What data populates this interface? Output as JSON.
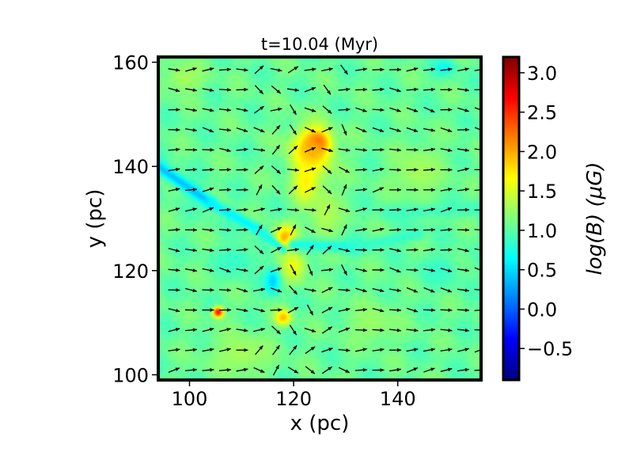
{
  "chart_data": {
    "type": "heatmap",
    "title": "t=10.04 (Myr)",
    "xlabel": "x (pc)",
    "ylabel": "y (pc)",
    "xlim": [
      94,
      156
    ],
    "ylim": [
      99,
      161
    ],
    "xticks": [
      100,
      120,
      140
    ],
    "yticks": [
      100,
      120,
      140,
      160
    ],
    "colorbar": {
      "label": "log(B) (μG)",
      "colormap": "jet",
      "range": [
        -0.9,
        3.2
      ],
      "ticks": [
        -0.5,
        0.0,
        0.5,
        1.0,
        1.5,
        2.0,
        2.5,
        3.0
      ],
      "tick_labels": [
        "−0.5",
        "0.0",
        "0.5",
        "1.0",
        "1.5",
        "2.0",
        "2.5",
        "3.0"
      ]
    },
    "background_level": 1.05,
    "features": [
      {
        "kind": "blob",
        "x": 124.5,
        "y": 144.5,
        "rx": 2.0,
        "ry": 2.0,
        "value": 2.9
      },
      {
        "kind": "blob",
        "x": 123.5,
        "y": 143.0,
        "rx": 4.0,
        "ry": 4.5,
        "value": 2.0
      },
      {
        "kind": "blob",
        "x": 122.5,
        "y": 137.0,
        "rx": 2.5,
        "ry": 4.0,
        "value": 1.75
      },
      {
        "kind": "blob",
        "x": 118.5,
        "y": 126.0,
        "rx": 2.0,
        "ry": 2.5,
        "value": 2.1
      },
      {
        "kind": "blob",
        "x": 120.0,
        "y": 121.0,
        "rx": 2.5,
        "ry": 3.0,
        "value": 1.6
      },
      {
        "kind": "blob",
        "x": 118.0,
        "y": 111.0,
        "rx": 1.5,
        "ry": 1.5,
        "value": 1.95
      },
      {
        "kind": "blob",
        "x": 105.5,
        "y": 112.0,
        "rx": 1.0,
        "ry": 1.0,
        "value": 2.7
      },
      {
        "kind": "blob",
        "x": 126.0,
        "y": 131.0,
        "rx": 3.0,
        "ry": 6.0,
        "value": 1.35
      },
      {
        "kind": "blob",
        "x": 110.0,
        "y": 104.0,
        "rx": 6.0,
        "ry": 4.0,
        "value": 1.3
      },
      {
        "kind": "blob",
        "x": 135.0,
        "y": 110.0,
        "rx": 5.0,
        "ry": 4.0,
        "value": 1.25
      },
      {
        "kind": "blob",
        "x": 144.0,
        "y": 139.0,
        "rx": 5.0,
        "ry": 5.0,
        "value": 1.3
      },
      {
        "kind": "blob",
        "x": 99.0,
        "y": 157.0,
        "rx": 4.0,
        "ry": 3.0,
        "value": 1.3
      },
      {
        "kind": "blob",
        "x": 116.0,
        "y": 118.0,
        "rx": 1.5,
        "ry": 2.5,
        "value": 0.45
      },
      {
        "kind": "blob",
        "x": 149.0,
        "y": 159.0,
        "rx": 2.0,
        "ry": 1.5,
        "value": 0.65
      },
      {
        "kind": "blob",
        "x": 148.0,
        "y": 120.0,
        "rx": 4.0,
        "ry": 3.0,
        "value": 0.85
      },
      {
        "kind": "blob",
        "x": 109.0,
        "y": 122.0,
        "rx": 4.0,
        "ry": 3.0,
        "value": 0.85
      },
      {
        "kind": "filament",
        "x1": 94.0,
        "y1": 140.0,
        "x2": 104.0,
        "y2": 133.0,
        "width": 1.2,
        "value": 0.4
      },
      {
        "kind": "filament",
        "x1": 104.0,
        "y1": 133.0,
        "x2": 113.0,
        "y2": 128.0,
        "width": 1.0,
        "value": 0.6
      },
      {
        "kind": "filament",
        "x1": 113.0,
        "y1": 128.0,
        "x2": 118.0,
        "y2": 124.0,
        "width": 0.8,
        "value": 0.7
      },
      {
        "kind": "filament",
        "x1": 120.0,
        "y1": 125.0,
        "x2": 132.0,
        "y2": 124.5,
        "width": 1.3,
        "value": 0.75
      },
      {
        "kind": "filament",
        "x1": 132.0,
        "y1": 124.5,
        "x2": 144.0,
        "y2": 127.0,
        "width": 1.2,
        "value": 0.85
      },
      {
        "kind": "filament",
        "x1": 138.0,
        "y1": 131.0,
        "x2": 156.0,
        "y2": 132.0,
        "width": 1.5,
        "value": 0.9
      }
    ],
    "vector_field": {
      "description": "magnetic field direction arrows, mostly pointing in +x",
      "columns": 19,
      "rows": 16,
      "field_angle_deg_default": 0
    }
  }
}
